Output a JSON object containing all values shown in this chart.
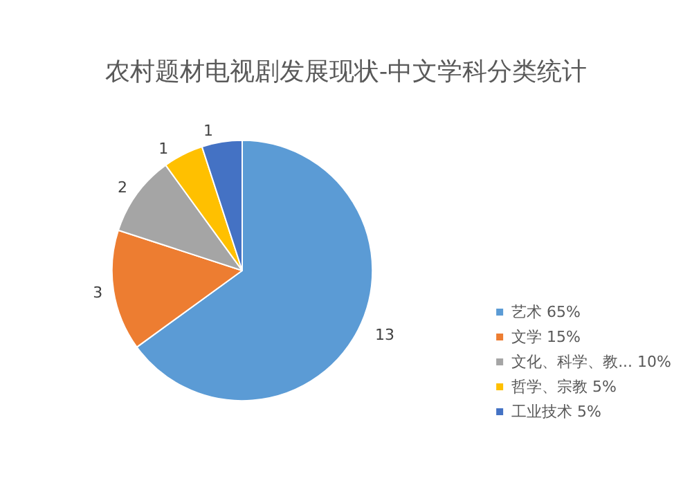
{
  "chart_data": {
    "type": "pie",
    "title": "农村题材电视剧发展现状-中文学科分类统计",
    "categories": [
      "艺术 65%",
      "文学 15%",
      "文化、科学、教... 10%",
      "哲学、宗教 5%",
      "工业技术 5%"
    ],
    "values": [
      13,
      3,
      2,
      1,
      1
    ],
    "colors": [
      "#5b9bd5",
      "#ed7d31",
      "#a5a5a5",
      "#ffc000",
      "#4472c4"
    ],
    "data_labels": true,
    "legend": "right"
  }
}
